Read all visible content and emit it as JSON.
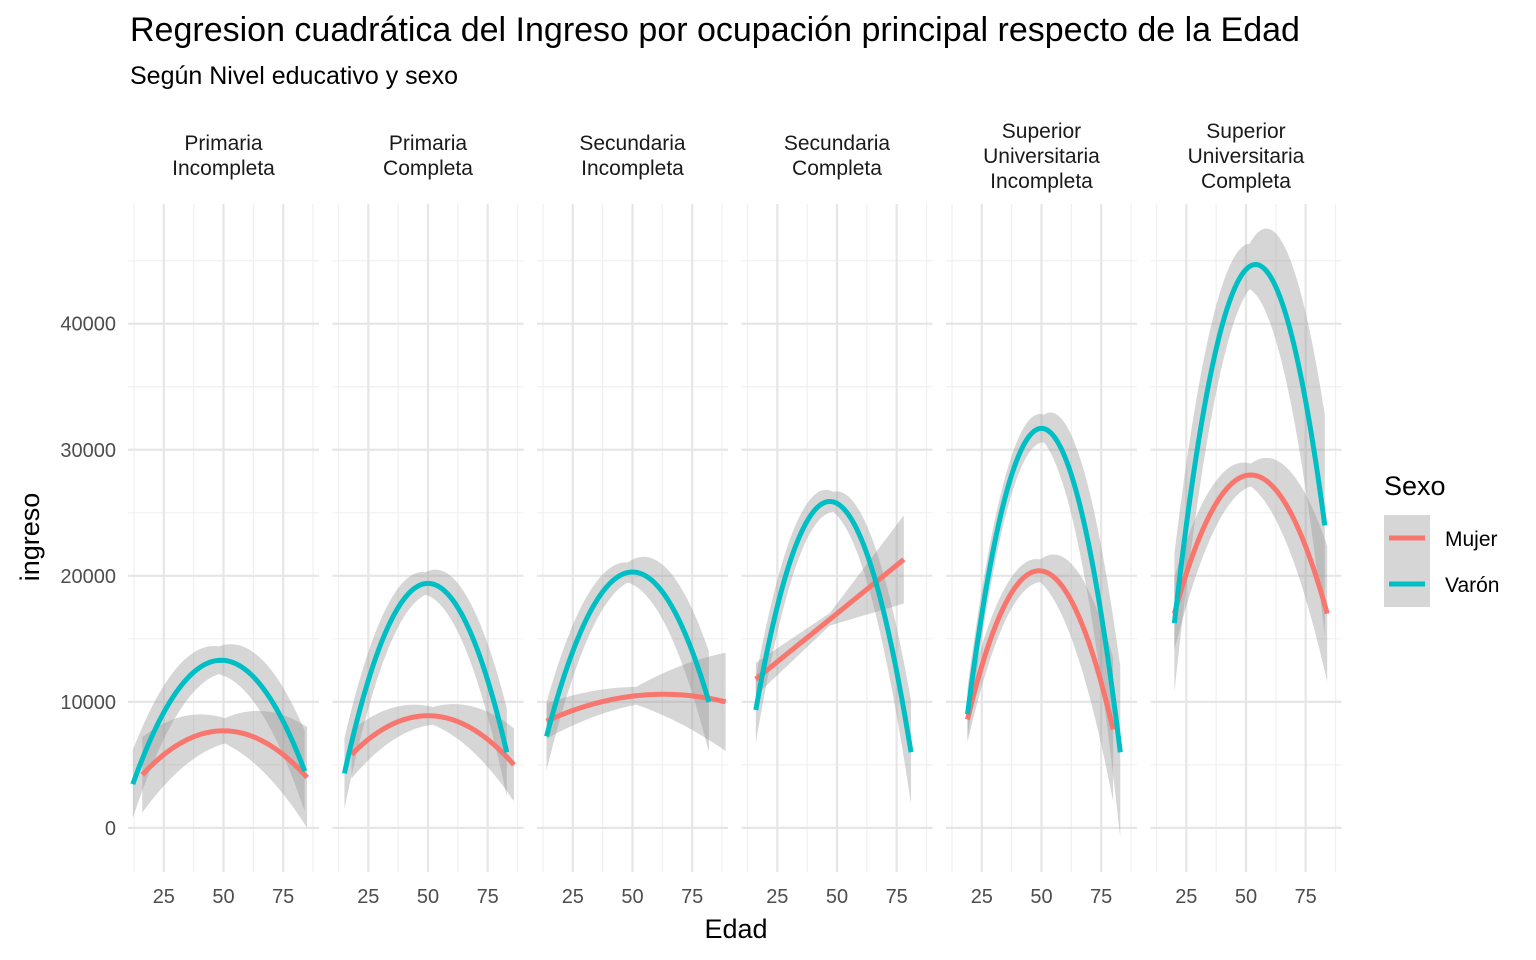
{
  "chart_data": {
    "type": "line",
    "title": "Regresion cuadrática del Ingreso por ocupación principal respecto de la Edad",
    "subtitle": "Según Nivel educativo y sexo",
    "xlabel": "Edad",
    "ylabel": "ingreso",
    "xlim": [
      10,
      90
    ],
    "ylim": [
      -3500,
      49500
    ],
    "x_ticks": [
      25,
      50,
      75
    ],
    "y_ticks": [
      0,
      10000,
      20000,
      30000,
      40000
    ],
    "grid": true,
    "legend": {
      "title": "Sexo",
      "position": "right",
      "entries": [
        {
          "label": "Mujer",
          "color": "#F8766D"
        },
        {
          "label": "Varón",
          "color": "#00BFC4"
        }
      ]
    },
    "facets": [
      {
        "label": "Primaria\nIncompleta",
        "series": [
          {
            "name": "Mujer",
            "x_range": [
              16,
              85
            ],
            "vertex": [
              50,
              7700
            ],
            "end_value": 4000,
            "se": [
              3000,
              1000,
              4000
            ]
          },
          {
            "name": "Varón",
            "x_range": [
              12,
              84
            ],
            "vertex": [
              49,
              13300
            ],
            "end_value": 4500,
            "se": [
              2700,
              1100,
              3200
            ]
          }
        ]
      },
      {
        "label": "Primaria\nCompleta",
        "series": [
          {
            "name": "Mujer",
            "x_range": [
              18,
              86
            ],
            "vertex": [
              50,
              8900
            ],
            "end_value": 5000,
            "se": [
              1900,
              700,
              2900
            ]
          },
          {
            "name": "Varón",
            "x_range": [
              15,
              83
            ],
            "vertex": [
              50,
              19400
            ],
            "end_value": 6000,
            "se": [
              2800,
              900,
              3500
            ]
          }
        ]
      },
      {
        "label": "Secundaria\nIncompleta",
        "series": [
          {
            "name": "Mujer",
            "x_range": [
              14,
              89
            ],
            "vertex": [
              63,
              10600
            ],
            "end_value": 10000,
            "se": [
              1400,
              700,
              3900
            ]
          },
          {
            "name": "Varón",
            "x_range": [
              14,
              82
            ],
            "vertex": [
              50,
              20300
            ],
            "end_value": 10000,
            "se": [
              2700,
              800,
              4000
            ]
          }
        ]
      },
      {
        "label": "Secundaria\nCompleta",
        "series": [
          {
            "name": "Mujer",
            "kind": "linear",
            "x_range": [
              16,
              78
            ],
            "start_value": 11800,
            "end_value": 21300,
            "se": [
              1300,
              500,
              3500
            ]
          },
          {
            "name": "Varón",
            "x_range": [
              16,
              81
            ],
            "vertex": [
              47,
              25900
            ],
            "end_value": 6000,
            "se": [
              2600,
              800,
              4100
            ]
          }
        ]
      },
      {
        "label": "Superior\nUniversitaria\nIncompleta",
        "series": [
          {
            "name": "Mujer",
            "x_range": [
              19,
              80
            ],
            "vertex": [
              49,
              20400
            ],
            "end_value": 7800,
            "se": [
              1800,
              900,
              5700
            ]
          },
          {
            "name": "Varón",
            "x_range": [
              19,
              83
            ],
            "vertex": [
              50,
              31700
            ],
            "end_value": 6000,
            "se": [
              2100,
              1100,
              6800
            ]
          }
        ]
      },
      {
        "label": "Superior\nUniversitaria\nCompleta",
        "series": [
          {
            "name": "Mujer",
            "x_range": [
              20,
              84
            ],
            "vertex": [
              52,
              28000
            ],
            "end_value": 17000,
            "se": [
              2900,
              900,
              5400
            ]
          },
          {
            "name": "Varón",
            "x_range": [
              20,
              83
            ],
            "vertex": [
              54,
              44700
            ],
            "end_value": 24000,
            "se": [
              5500,
              1800,
              8800
            ]
          }
        ]
      }
    ]
  }
}
